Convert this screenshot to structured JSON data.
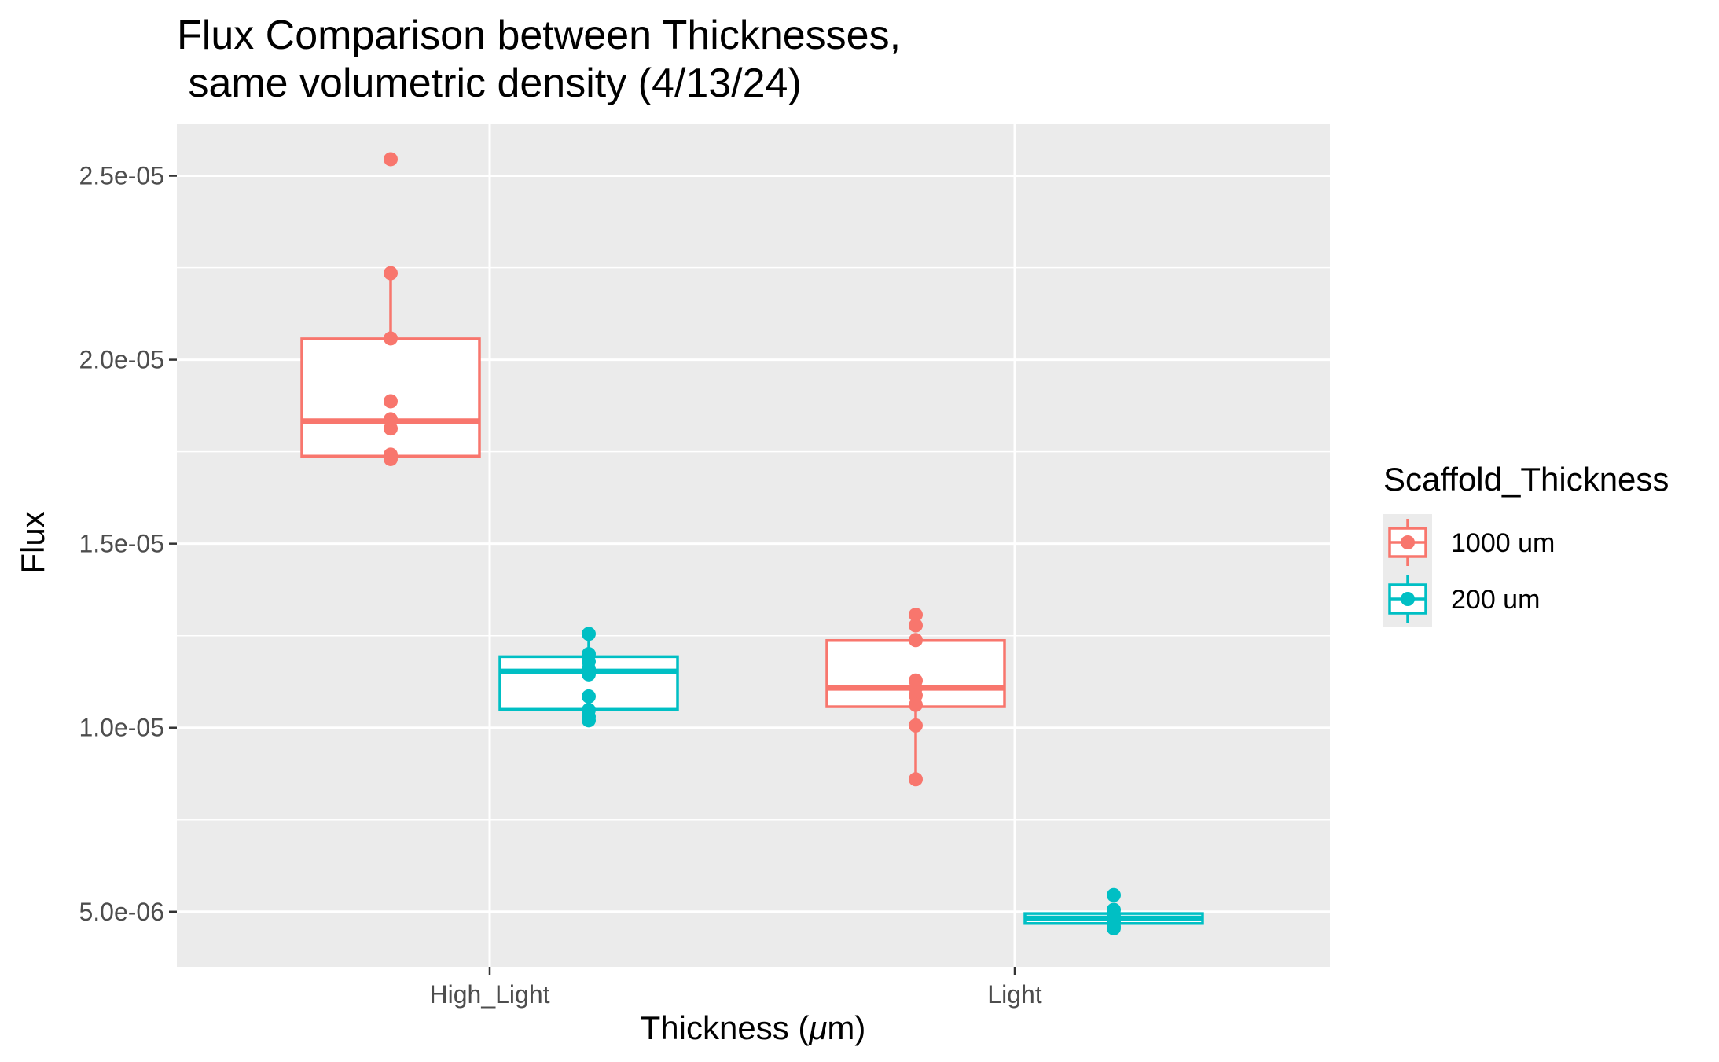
{
  "chart_data": {
    "type": "box",
    "title_lines": [
      "Flux Comparison between Thicknesses,",
      " same volumetric density (4/13/24)"
    ],
    "xlabel_prefix": "Thickness (",
    "xlabel_mu": "μ",
    "xlabel_suffix": "m)",
    "ylabel": "Flux",
    "ylim": [
      3.5e-06,
      2.64e-05
    ],
    "y_ticks": [
      {
        "value": 5e-06,
        "label": "5.0e-06"
      },
      {
        "value": 1e-05,
        "label": "1.0e-05"
      },
      {
        "value": 1.5e-05,
        "label": "1.5e-05"
      },
      {
        "value": 2e-05,
        "label": "2.0e-05"
      },
      {
        "value": 2.5e-05,
        "label": "2.5e-05"
      }
    ],
    "y_minor": [
      7.5e-06,
      1.25e-05,
      1.75e-05,
      2.25e-05
    ],
    "categories": [
      "High_Light",
      "Light"
    ],
    "legend": {
      "title": "Scaffold_Thickness",
      "position": "right",
      "entries": [
        {
          "name": "1000 um",
          "color": "#F8766D"
        },
        {
          "name": "200 um",
          "color": "#00BFC4"
        }
      ]
    },
    "series": [
      {
        "name": "1000 um",
        "color": "#F8766D",
        "boxes": [
          {
            "category": "High_Light",
            "q1": 1.738e-05,
            "median": 1.833e-05,
            "q3": 2.057e-05,
            "whisker_low": 1.73e-05,
            "whisker_high": 2.235e-05,
            "points": [
              2.545e-05,
              2.235e-05,
              2.058e-05,
              1.887e-05,
              1.838e-05,
              1.813e-05,
              1.742e-05,
              1.73e-05
            ]
          },
          {
            "category": "Light",
            "q1": 1.057e-05,
            "median": 1.108e-05,
            "q3": 1.237e-05,
            "whisker_low": 8.6e-06,
            "whisker_high": 1.237e-05,
            "points": [
              1.307e-05,
              1.278e-05,
              1.238e-05,
              1.128e-05,
              1.108e-05,
              1.088e-05,
              1.062e-05,
              1.006e-05,
              8.6e-06
            ]
          }
        ]
      },
      {
        "name": "200 um",
        "color": "#00BFC4",
        "boxes": [
          {
            "category": "High_Light",
            "q1": 1.05e-05,
            "median": 1.153e-05,
            "q3": 1.193e-05,
            "whisker_low": 1.02e-05,
            "whisker_high": 1.255e-05,
            "points": [
              1.255e-05,
              1.2e-05,
              1.18e-05,
              1.16e-05,
              1.145e-05,
              1.085e-05,
              1.048e-05,
              1.03e-05,
              1.02e-05
            ]
          },
          {
            "category": "Light",
            "q1": 4.68e-06,
            "median": 4.82e-06,
            "q3": 4.95e-06,
            "whisker_low": 4.55e-06,
            "whisker_high": 4.95e-06,
            "points": [
              5.45e-06,
              5.05e-06,
              4.92e-06,
              4.82e-06,
              4.72e-06,
              4.6e-06,
              4.55e-06
            ]
          }
        ]
      }
    ],
    "grid": true,
    "panel_background": "#EBEBEB",
    "grid_color": "#FFFFFF"
  }
}
